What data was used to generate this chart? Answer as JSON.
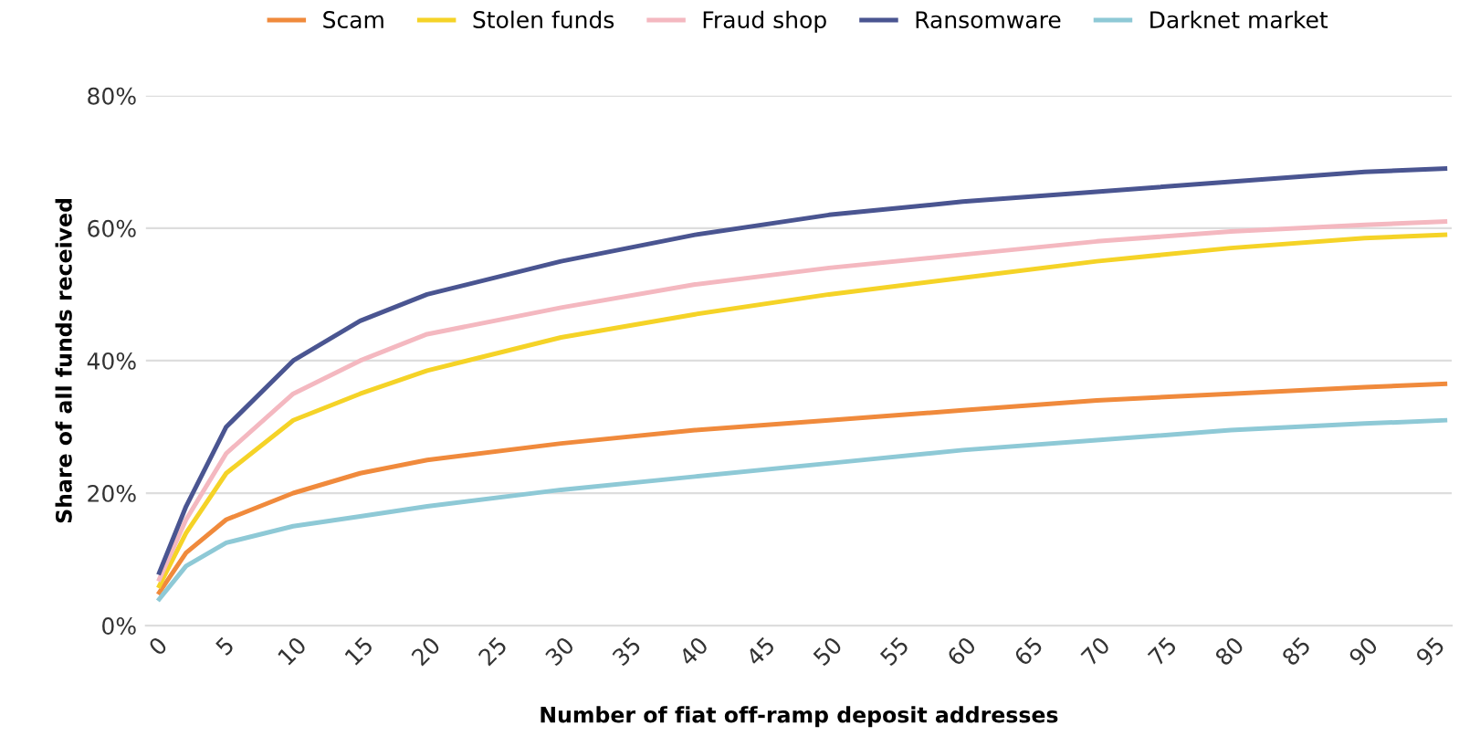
{
  "chart_data": {
    "type": "line",
    "xlabel": "Number of fiat off-ramp deposit addresses",
    "ylabel": "Share of all funds received",
    "x": [
      0,
      2,
      5,
      10,
      15,
      20,
      30,
      40,
      50,
      60,
      70,
      80,
      90,
      96
    ],
    "series": [
      {
        "name": "Scam",
        "color": "#f08a3c",
        "values": [
          5,
          11,
          16,
          20,
          23,
          25,
          27.5,
          29.5,
          31,
          32.5,
          34,
          35,
          36,
          36.5
        ]
      },
      {
        "name": "Stolen funds",
        "color": "#f5d327",
        "values": [
          6,
          14,
          23,
          31,
          35,
          38.5,
          43.5,
          47,
          50,
          52.5,
          55,
          57,
          58.5,
          59
        ]
      },
      {
        "name": "Fraud shop",
        "color": "#f4b8c0",
        "values": [
          7,
          16,
          26,
          35,
          40,
          44,
          48,
          51.5,
          54,
          56,
          58,
          59.5,
          60.5,
          61
        ]
      },
      {
        "name": "Ransomware",
        "color": "#4a5591",
        "values": [
          8,
          18,
          30,
          40,
          46,
          50,
          55,
          59,
          62,
          64,
          65.5,
          67,
          68.5,
          69
        ]
      },
      {
        "name": "Darknet market",
        "color": "#8ec9d6",
        "values": [
          4,
          9,
          12.5,
          15,
          16.5,
          18,
          20.5,
          22.5,
          24.5,
          26.5,
          28,
          29.5,
          30.5,
          31
        ]
      }
    ],
    "xlim": [
      -1,
      96.5
    ],
    "xticks": [
      0,
      5,
      10,
      15,
      20,
      25,
      30,
      35,
      40,
      45,
      50,
      55,
      60,
      65,
      70,
      75,
      80,
      85,
      90,
      95
    ],
    "ylim": [
      0,
      80
    ],
    "yticks": [
      {
        "value": 0,
        "label": "0%"
      },
      {
        "value": 20,
        "label": "20%"
      },
      {
        "value": 40,
        "label": "40%"
      },
      {
        "value": 60,
        "label": "60%"
      },
      {
        "value": 80,
        "label": "80%"
      }
    ],
    "grid": "y",
    "legend": "top",
    "marker": "none",
    "line_style": "solid"
  }
}
